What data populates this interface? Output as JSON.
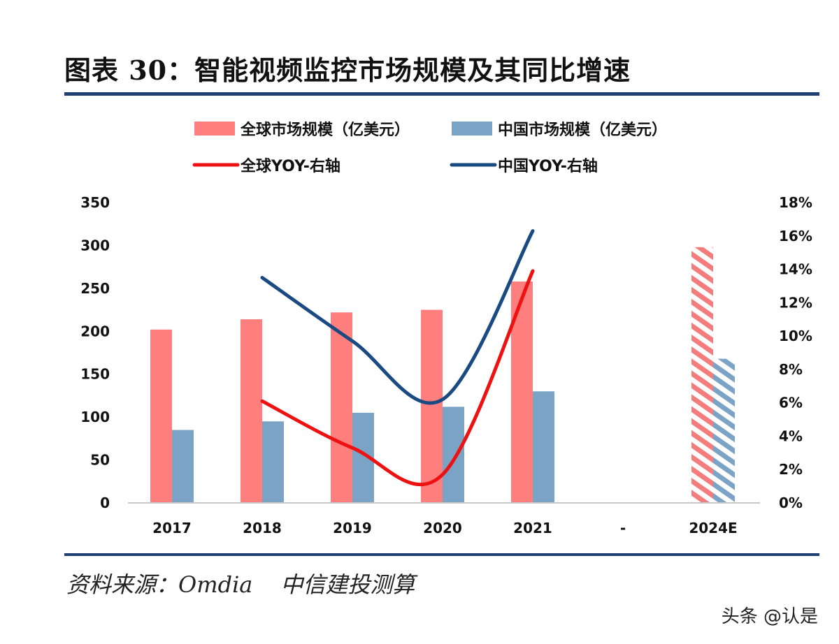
{
  "title": "图表 30：智能视频监控市场规模及其同比增速",
  "source": {
    "label": "资料来源：Omdia",
    "org": "中信建投测算"
  },
  "watermark": "头条 @认是",
  "chart_data": {
    "type": "bar",
    "title": "图表 30：智能视频监控市场规模及其同比增速",
    "categories": [
      "2017",
      "2018",
      "2019",
      "2020",
      "2021",
      "-",
      "2024E"
    ],
    "left_axis": {
      "ylim": [
        0,
        350
      ],
      "ticks": [
        "0",
        "50",
        "100",
        "150",
        "200",
        "250",
        "300",
        "350"
      ]
    },
    "right_axis": {
      "ylim": [
        0,
        18
      ],
      "ticks": [
        "0%",
        "2%",
        "4%",
        "6%",
        "8%",
        "10%",
        "12%",
        "14%",
        "16%",
        "18%"
      ]
    },
    "legend_placement": "top",
    "grid": false,
    "series": [
      {
        "name": "全球市场规模（亿美元）",
        "kind": "bar",
        "axis": "left",
        "color": "#ff7f7f",
        "values": [
          202,
          214,
          222,
          225,
          258,
          null,
          298
        ],
        "hatched_categories": [
          "2024E"
        ]
      },
      {
        "name": "中国市场规模（亿美元）",
        "kind": "bar",
        "axis": "left",
        "color": "#7aa3c5",
        "values": [
          85,
          95,
          105,
          112,
          130,
          null,
          168
        ],
        "hatched_categories": [
          "2024E"
        ]
      },
      {
        "name": "全球YOY-右轴",
        "kind": "line",
        "axis": "right",
        "color": "#ee1111",
        "values": [
          null,
          6.1,
          3.3,
          1.7,
          13.9,
          null,
          null
        ]
      },
      {
        "name": "中国YOY-右轴",
        "kind": "line",
        "axis": "right",
        "color": "#1a4a82",
        "values": [
          null,
          13.5,
          9.7,
          6.2,
          16.3,
          null,
          null
        ]
      }
    ]
  }
}
